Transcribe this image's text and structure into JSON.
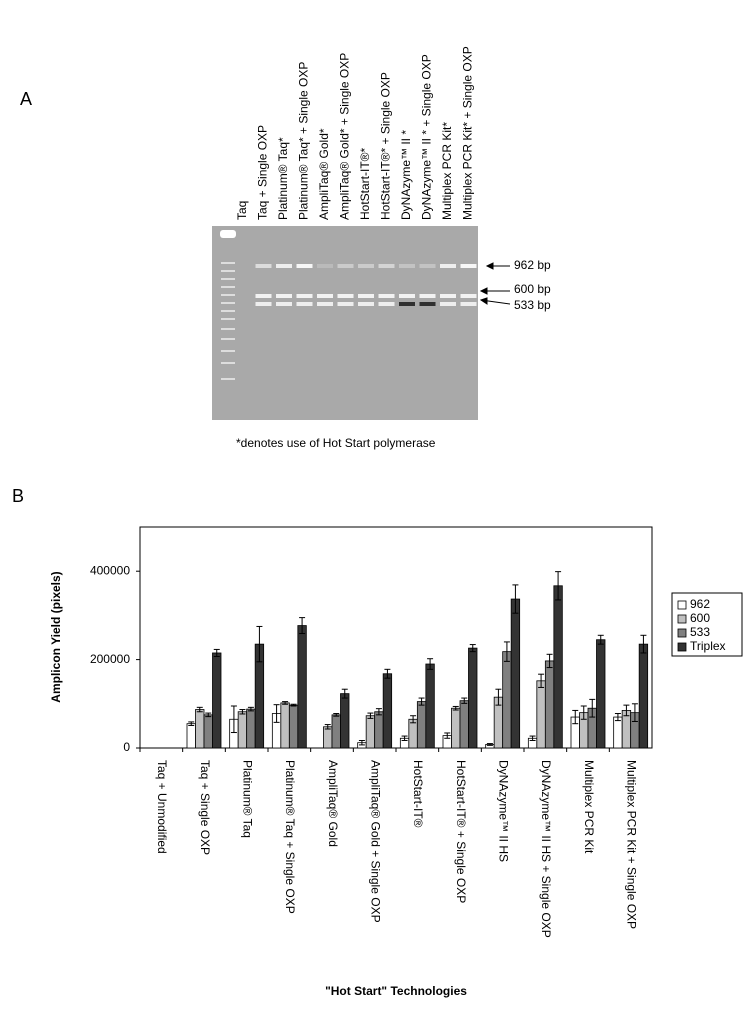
{
  "panel_a": {
    "label": "A",
    "lanes": [
      "Taq",
      "Taq + Single OXP",
      "Platinum® Taq*",
      "Platinum® Taq* + Single OXP",
      "AmpliTaq® Gold*",
      "AmpliTaq® Gold* + Single OXP",
      "HotStart-IT®*",
      "HotStart-IT®* + Single OXP",
      "DyNAzyme™ II *",
      "DyNAzyme™ II * + Single OXP",
      "Multiplex PCR Kit*",
      "Multiplex PCR Kit* + Single OXP"
    ],
    "band_labels": [
      "962 bp",
      "600 bp",
      "533 bp"
    ],
    "footnote": "*denotes use of Hot Start polymerase"
  },
  "chart_data": {
    "type": "bar",
    "panel_label": "B",
    "y_label": "Amplicon Yield (pixels)",
    "x_label": "\"Hot Start\" Technologies",
    "categories": [
      "Taq + Unmodified",
      "Taq + Single OXP",
      "Platinum® Taq",
      "Platinum® Taq + Single OXP",
      "AmpliTaq® Gold",
      "AmpliTaq® Gold + Single OXP",
      "HotStart-IT®",
      "HotStart-IT® + Single OXP",
      "DyNAzyme™ II HS",
      "DyNAzyme™ II HS + Single OXP",
      "Multiplex PCR Kit",
      "Multiplex PCR Kit + Single OXP"
    ],
    "series": [
      {
        "name": "962",
        "color": "#ffffff",
        "values": [
          0,
          55000,
          65000,
          78000,
          0,
          12000,
          22000,
          28000,
          8000,
          22000,
          70000,
          70000
        ],
        "errors": [
          0,
          4000,
          30000,
          20000,
          0,
          5000,
          5000,
          6000,
          2000,
          5000,
          15000,
          8000
        ]
      },
      {
        "name": "600",
        "color": "#c0c0c0",
        "values": [
          0,
          87000,
          82000,
          102000,
          48000,
          73000,
          65000,
          90000,
          115000,
          152000,
          80000,
          85000
        ],
        "errors": [
          0,
          5000,
          5000,
          3000,
          5000,
          6000,
          8000,
          4000,
          18000,
          15000,
          15000,
          12000
        ]
      },
      {
        "name": "533",
        "color": "#808080",
        "values": [
          0,
          75000,
          88000,
          97000,
          75000,
          82000,
          105000,
          107000,
          218000,
          197000,
          90000,
          80000
        ],
        "errors": [
          0,
          4000,
          4000,
          2000,
          3000,
          7000,
          8000,
          6000,
          22000,
          15000,
          20000,
          20000
        ]
      },
      {
        "name": "Triplex",
        "color": "#333333",
        "values": [
          0,
          215000,
          235000,
          277000,
          123000,
          168000,
          190000,
          226000,
          337000,
          367000,
          245000,
          235000
        ],
        "errors": [
          0,
          8000,
          40000,
          18000,
          10000,
          10000,
          12000,
          8000,
          32000,
          32000,
          10000,
          20000
        ]
      }
    ],
    "ylim": [
      0,
      500000
    ],
    "yticks": [
      0,
      200000,
      400000
    ],
    "grid": false,
    "legend": "right"
  }
}
